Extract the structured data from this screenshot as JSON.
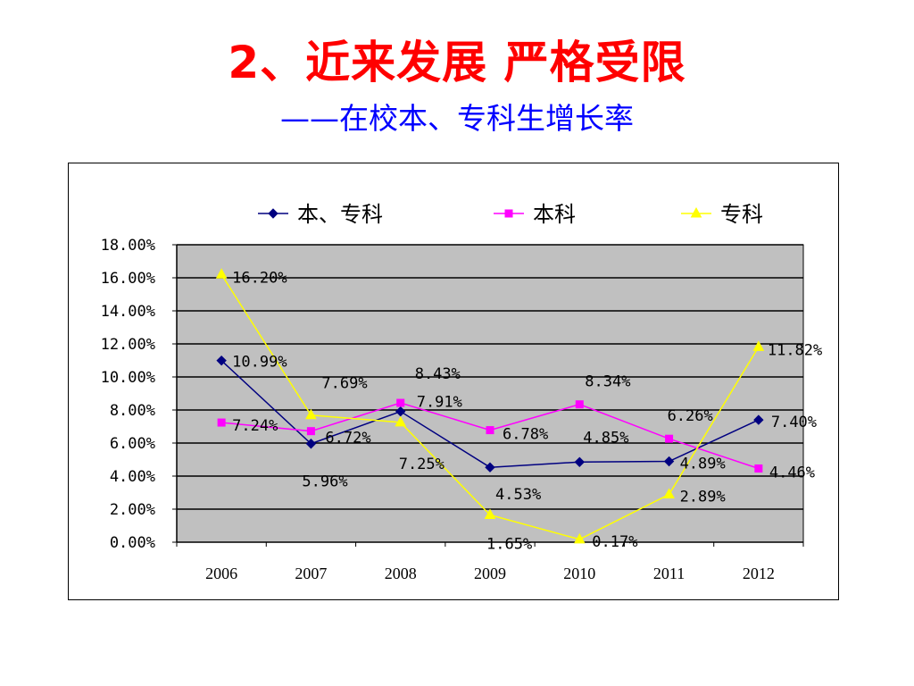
{
  "slide": {
    "title": "2、近来发展  严格受限",
    "subtitle": "——在校本、专科生增长率"
  },
  "chart_data": {
    "type": "line",
    "categories": [
      "2006",
      "2007",
      "2008",
      "2009",
      "2010",
      "2011",
      "2012"
    ],
    "ylim": [
      0,
      18
    ],
    "y_ticks": [
      "0.00%",
      "2.00%",
      "4.00%",
      "6.00%",
      "8.00%",
      "10.00%",
      "12.00%",
      "14.00%",
      "16.00%",
      "18.00%"
    ],
    "grid": true,
    "legend_position": "top",
    "plot_background": "#c0c0c0",
    "series": [
      {
        "name": "本、专科",
        "color": "#000080",
        "marker": "diamond",
        "values": [
          10.99,
          5.96,
          7.91,
          4.53,
          4.85,
          4.89,
          7.4
        ],
        "labels": [
          "10.99%",
          "5.96%",
          "7.91%",
          "4.53%",
          "4.85%",
          "4.89%",
          "7.40%"
        ]
      },
      {
        "name": "本科",
        "color": "#ff00ff",
        "marker": "square",
        "values": [
          7.24,
          6.72,
          8.43,
          6.78,
          8.34,
          6.26,
          4.46
        ],
        "labels": [
          "7.24%",
          "6.72%",
          "8.43%",
          "6.78%",
          "8.34%",
          "6.26%",
          "4.46%"
        ]
      },
      {
        "name": "专科",
        "color": "#ffff00",
        "marker": "triangle",
        "values": [
          16.2,
          7.69,
          7.25,
          1.65,
          0.17,
          2.89,
          11.82
        ],
        "labels": [
          "16.20%",
          "7.69%",
          "7.25%",
          "1.65%",
          "0.17%",
          "2.89%",
          "11.82%"
        ]
      }
    ]
  }
}
